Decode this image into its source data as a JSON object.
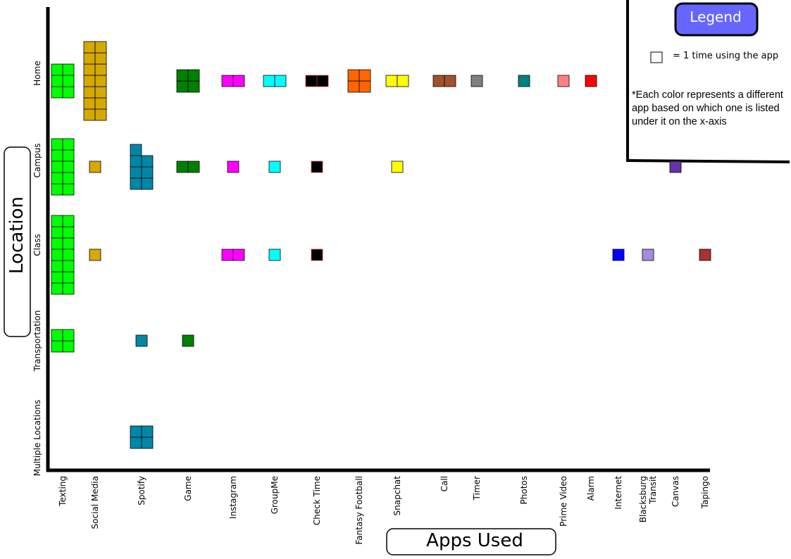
{
  "chart_data": {
    "type": "pictograph",
    "ylabel": "Location",
    "xlabel": "Apps Used",
    "locations": [
      "Home",
      "Campus",
      "Class",
      "Transportation",
      "Multiple Locations"
    ],
    "apps": [
      "Texting",
      "Social Media",
      "Spotify",
      "Game",
      "Instagram",
      "GroupMe",
      "Check Time",
      "Fantasy Football",
      "Snapchat",
      "Call",
      "Timer",
      "Photos",
      "Prime Video",
      "Alarm",
      "Internet",
      "Blacksburg Transit",
      "Canvas",
      "Tapingo"
    ],
    "app_label_lines": [
      [
        "Texting"
      ],
      [
        "Social Media"
      ],
      [
        "Spotify"
      ],
      [
        "Game"
      ],
      [
        "Instagram"
      ],
      [
        "GroupMe"
      ],
      [
        "Check Time"
      ],
      [
        "Fantasy Football"
      ],
      [
        "Snapchat"
      ],
      [
        "Call"
      ],
      [
        "Timer"
      ],
      [
        "Photos"
      ],
      [
        "Prime Video"
      ],
      [
        "Alarm"
      ],
      [
        "Internet"
      ],
      [
        "Blacksburg",
        "Transit"
      ],
      [
        "Canvas"
      ],
      [
        "Tapingo"
      ]
    ],
    "colors": {
      "Texting": "#00ff00",
      "Social Media": "#d4aa00",
      "Spotify": "#0087a8",
      "Game": "#008000",
      "Instagram": "#ff00ff",
      "GroupMe": "#00ffff",
      "Check Time": "#000000",
      "Fantasy Football": "#ff6600",
      "Snapchat": "#ffff00",
      "Call": "#a0522d",
      "Timer": "#808080",
      "Photos": "#008080",
      "Prime Video": "#ff8080",
      "Alarm": "#ff0000",
      "Internet": "#0000ff",
      "Blacksburg Transit": "#a68bde",
      "Canvas": "#6633aa",
      "Tapingo": "#a83232"
    },
    "counts": {
      "Home": {
        "Texting": 6,
        "Social Media": 14,
        "Game": 4,
        "Instagram": 2,
        "GroupMe": 2,
        "Check Time": 2,
        "Fantasy Football": 4,
        "Snapchat": 2,
        "Call": 2,
        "Timer": 1,
        "Photos": 1,
        "Prime Video": 1,
        "Alarm": 1
      },
      "Campus": {
        "Texting": 10,
        "Social Media": 1,
        "Spotify": 7,
        "Game": 2,
        "Instagram": 1,
        "GroupMe": 1,
        "Check Time": 1,
        "Snapchat": 1,
        "Canvas": 1
      },
      "Class": {
        "Texting": 14,
        "Social Media": 1,
        "Instagram": 2,
        "GroupMe": 1,
        "Check Time": 1,
        "Internet": 1,
        "Blacksburg Transit": 1,
        "Tapingo": 1
      },
      "Transportation": {
        "Texting": 4,
        "Spotify": 1,
        "Game": 1
      },
      "Multiple Locations": {
        "Spotify": 4
      }
    }
  },
  "legend": {
    "title": "Legend",
    "unit_text": "= 1 time using the app",
    "note_lines": [
      "*Each color represents a different",
      "app based on which one is listed",
      "under it on the x-axis"
    ],
    "title_bg": "#6666ff"
  }
}
